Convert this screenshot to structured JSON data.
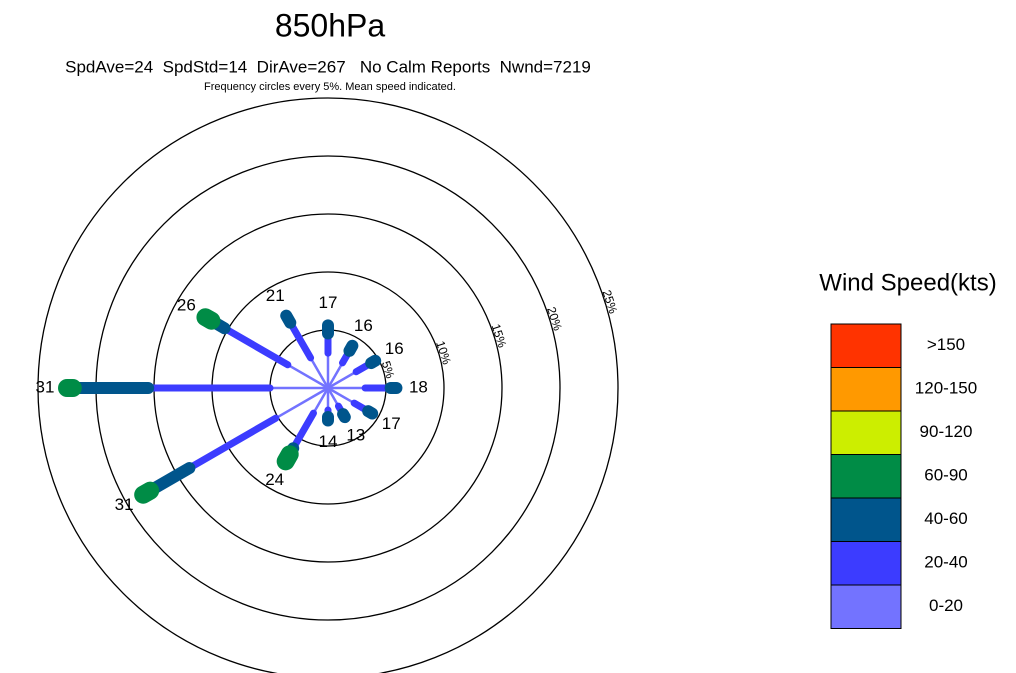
{
  "chart_data": {
    "type": "windrose",
    "title": "850hPa",
    "subtitle": "SpdAve=24  SpdStd=14  DirAve=267   No Calm Reports  Nwnd=7219",
    "note": "Frequency circles every 5%. Mean speed indicated.",
    "x": [
      0,
      30,
      60,
      90,
      120,
      150,
      180,
      210,
      240,
      270,
      300,
      330
    ],
    "mean_speeds": [
      17,
      16,
      16,
      18,
      17,
      13,
      14,
      24,
      31,
      31,
      26,
      21
    ],
    "rlim": [
      0,
      25
    ],
    "rticks": [
      {
        "value": 5,
        "label": "5%"
      },
      {
        "value": 10,
        "label": "10%"
      },
      {
        "value": 15,
        "label": "15%"
      },
      {
        "value": 20,
        "label": "20%"
      },
      {
        "value": 25,
        "label": "25%"
      }
    ],
    "legend_title": "Wind Speed(kts)",
    "series": [
      {
        "name": "0-20",
        "color": "#7373ff",
        "values": [
          3.0,
          2.5,
          2.8,
          3.2,
          2.6,
          1.8,
          1.9,
          2.5,
          5.2,
          5.0,
          4.0,
          3.0
        ]
      },
      {
        "name": "20-40",
        "color": "#3c3cff",
        "values": [
          1.7,
          1.2,
          1.5,
          2.2,
          1.4,
          0.8,
          0.6,
          3.5,
          8.6,
          10.5,
          6.3,
          3.5
        ]
      },
      {
        "name": "40-60",
        "color": "#00558c",
        "values": [
          0.7,
          0.5,
          0.4,
          0.5,
          0.4,
          0.3,
          0.3,
          0.6,
          3.9,
          6.5,
          1.3,
          0.7
        ]
      },
      {
        "name": "60-90",
        "color": "#008c46",
        "values": [
          0,
          0,
          0,
          0,
          0,
          0,
          0,
          0.7,
          0.7,
          0.5,
          0.6,
          0
        ]
      },
      {
        "name": "90-120",
        "color": "#ccee00",
        "values": [
          0,
          0,
          0,
          0,
          0,
          0,
          0,
          0,
          0,
          0,
          0,
          0
        ]
      },
      {
        "name": "120-150",
        "color": "#ff9900",
        "values": [
          0,
          0,
          0,
          0,
          0,
          0,
          0,
          0,
          0,
          0,
          0,
          0
        ]
      },
      {
        "name": ">150",
        "color": "#ff3300",
        "values": [
          0,
          0,
          0,
          0,
          0,
          0,
          0,
          0,
          0,
          0,
          0,
          0
        ]
      }
    ]
  }
}
